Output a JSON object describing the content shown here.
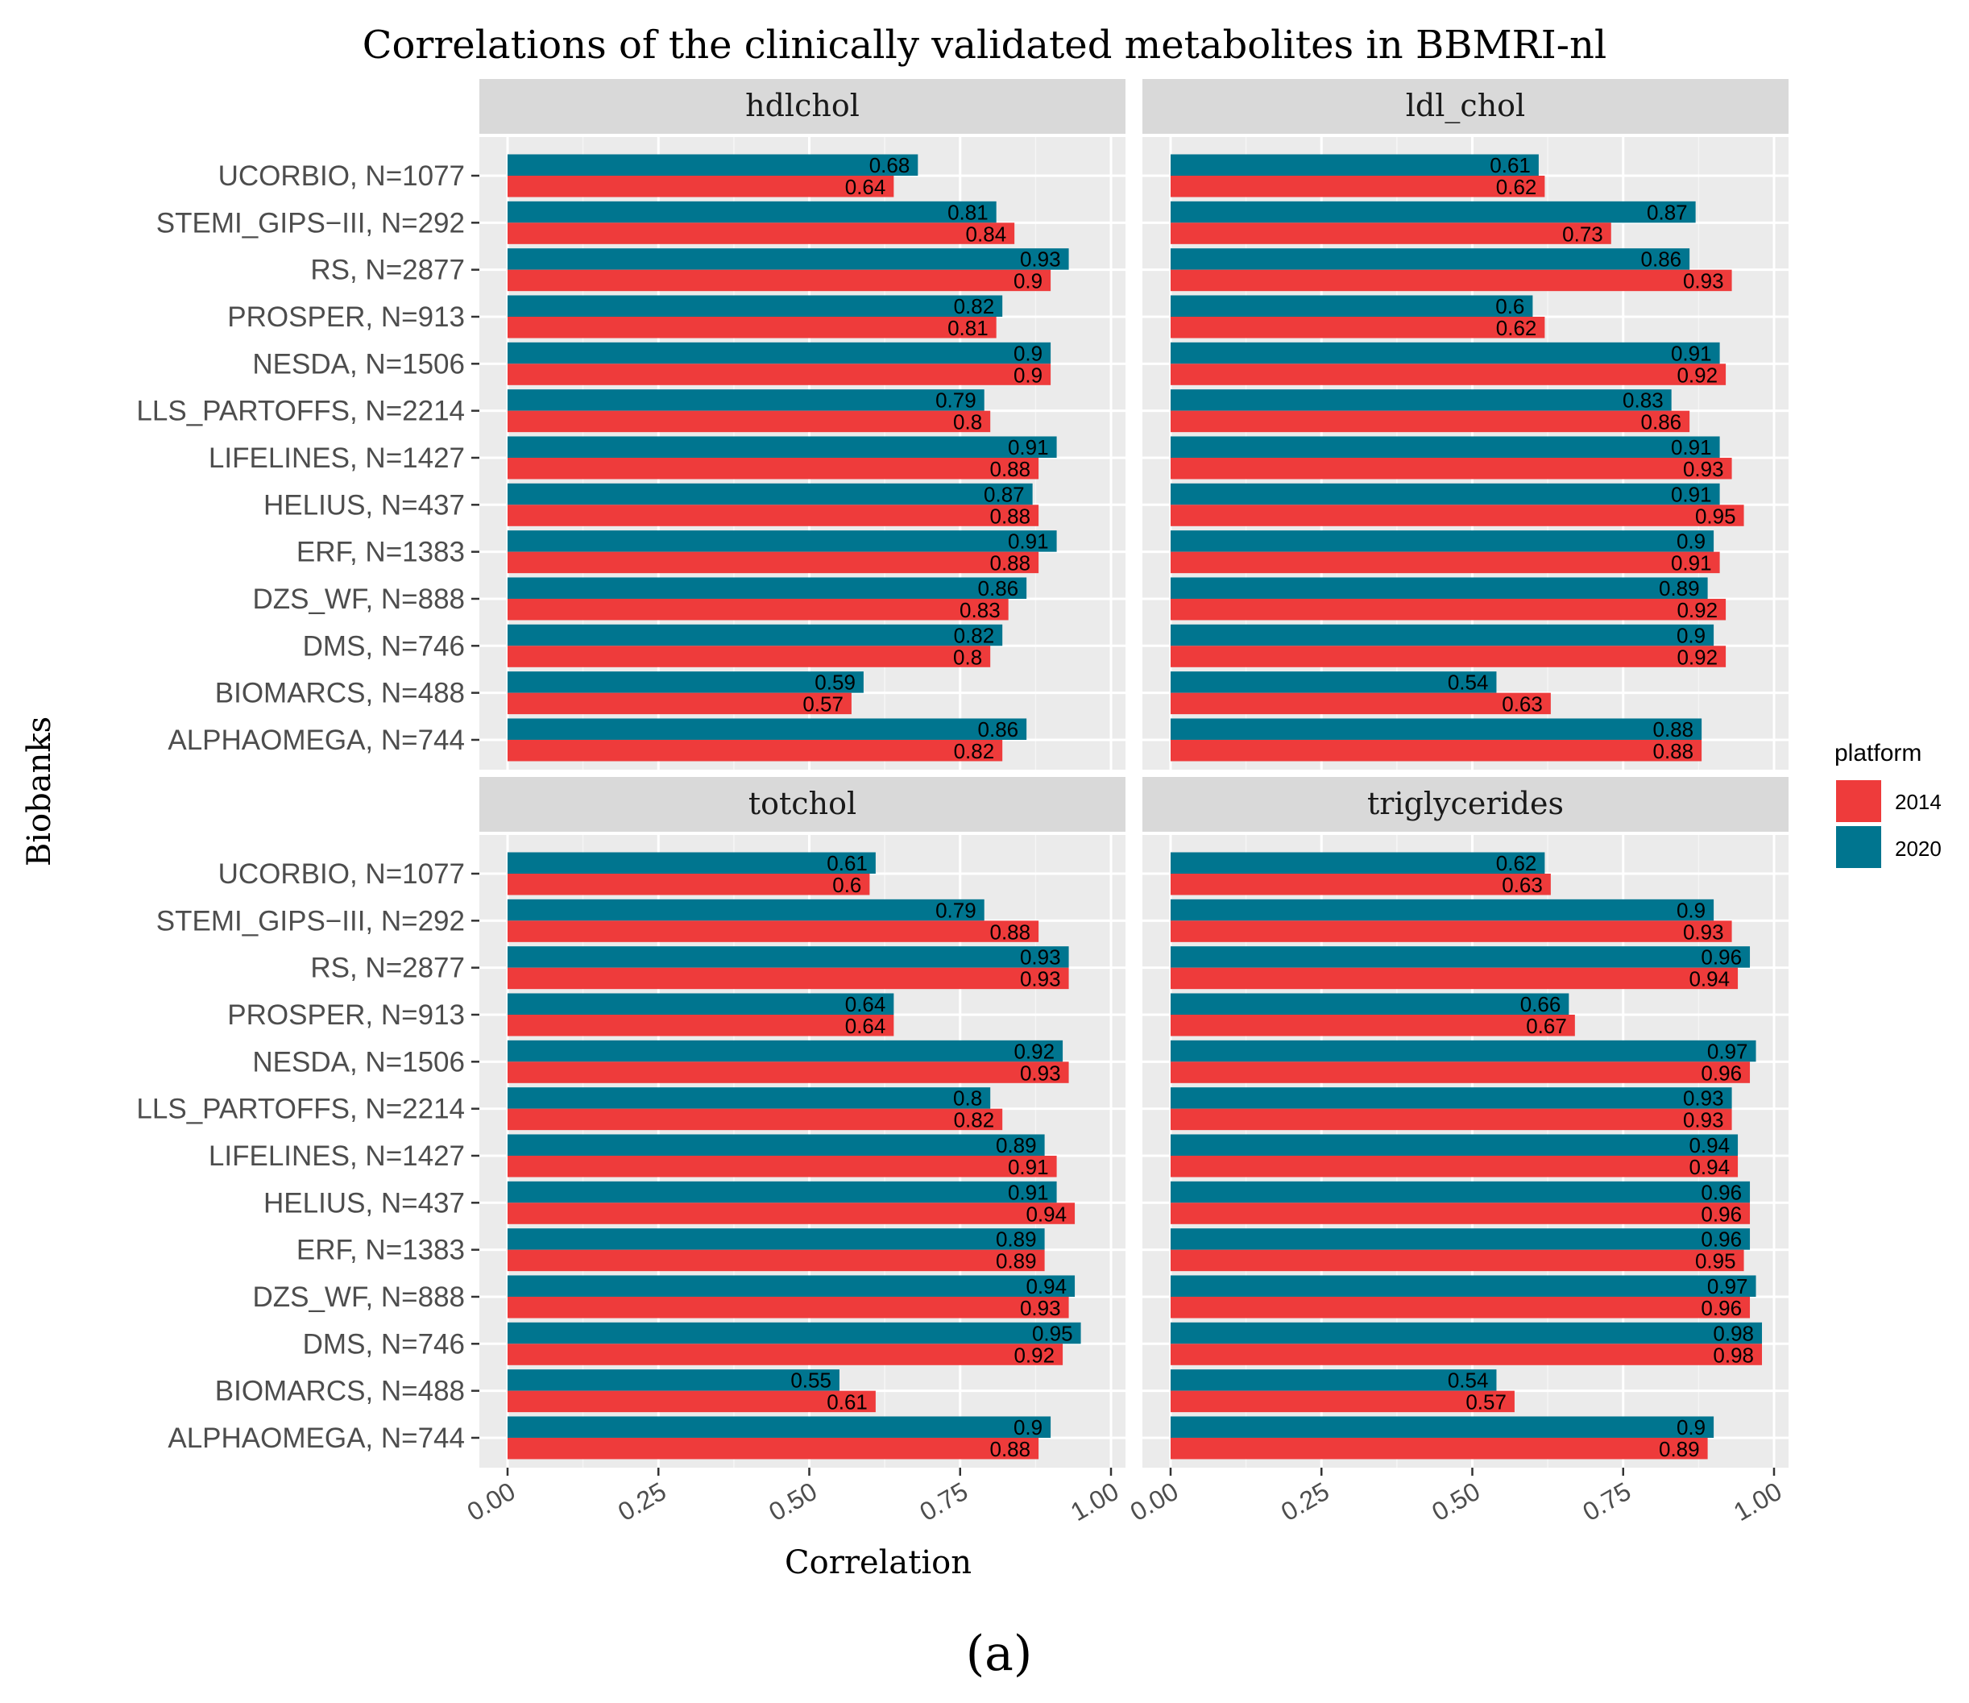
{
  "title": "Correlations of the clinically validated metabolites in BBMRI-nl",
  "caption": "(a)",
  "chart_data": {
    "type": "bar",
    "orientation": "horizontal",
    "title": "Correlations of the clinically validated metabolites in BBMRI-nl",
    "xlabel": "Correlation",
    "ylabel": "Biobanks",
    "xlim": [
      0,
      1
    ],
    "xticks": [
      "0.00",
      "0.25",
      "0.50",
      "0.75",
      "1.00"
    ],
    "xtick_values": [
      0,
      0.25,
      0.5,
      0.75,
      1.0
    ],
    "categories": [
      "UCORBIO, N=1077",
      "STEMI_GIPS−III, N=292",
      "RS, N=2877",
      "PROSPER, N=913",
      "NESDA, N=1506",
      "LLS_PARTOFFS, N=2214",
      "LIFELINES, N=1427",
      "HELIUS, N=437",
      "ERF, N=1383",
      "DZS_WF, N=888",
      "DMS, N=746",
      "BIOMARCS, N=488",
      "ALPHAOMEGA, N=744"
    ],
    "legend": {
      "title": "platform",
      "entries": [
        {
          "name": "2014",
          "color": "#EE3B3B"
        },
        {
          "name": "2020",
          "color": "#00758F"
        }
      ],
      "position": "right"
    },
    "panels": [
      {
        "name": "hdlchol",
        "series": [
          {
            "name": "2020",
            "values": [
              0.68,
              0.81,
              0.93,
              0.82,
              0.9,
              0.79,
              0.91,
              0.87,
              0.91,
              0.86,
              0.82,
              0.59,
              0.86
            ],
            "labels": [
              "0.68",
              "0.81",
              "0.93",
              "0.82",
              "0.9",
              "0.79",
              "0.91",
              "0.87",
              "0.91",
              "0.86",
              "0.82",
              "0.59",
              "0.86"
            ]
          },
          {
            "name": "2014",
            "values": [
              0.64,
              0.84,
              0.9,
              0.81,
              0.9,
              0.8,
              0.88,
              0.88,
              0.88,
              0.83,
              0.8,
              0.57,
              0.82
            ],
            "labels": [
              "0.64",
              "0.84",
              "0.9",
              "0.81",
              "0.9",
              "0.8",
              "0.88",
              "0.88",
              "0.88",
              "0.83",
              "0.8",
              "0.57",
              "0.82"
            ]
          }
        ]
      },
      {
        "name": "ldl_chol",
        "series": [
          {
            "name": "2020",
            "values": [
              0.61,
              0.87,
              0.86,
              0.6,
              0.91,
              0.83,
              0.91,
              0.91,
              0.9,
              0.89,
              0.9,
              0.54,
              0.88
            ],
            "labels": [
              "0.61",
              "0.87",
              "0.86",
              "0.6",
              "0.91",
              "0.83",
              "0.91",
              "0.91",
              "0.9",
              "0.89",
              "0.9",
              "0.54",
              "0.88"
            ]
          },
          {
            "name": "2014",
            "values": [
              0.62,
              0.73,
              0.93,
              0.62,
              0.92,
              0.86,
              0.93,
              0.95,
              0.91,
              0.92,
              0.92,
              0.63,
              0.88
            ],
            "labels": [
              "0.62",
              "0.73",
              "0.93",
              "0.62",
              "0.92",
              "0.86",
              "0.93",
              "0.95",
              "0.91",
              "0.92",
              "0.92",
              "0.63",
              "0.88"
            ]
          }
        ]
      },
      {
        "name": "totchol",
        "series": [
          {
            "name": "2020",
            "values": [
              0.61,
              0.79,
              0.93,
              0.64,
              0.92,
              0.8,
              0.89,
              0.91,
              0.89,
              0.94,
              0.95,
              0.55,
              0.9
            ],
            "labels": [
              "0.61",
              "0.79",
              "0.93",
              "0.64",
              "0.92",
              "0.8",
              "0.89",
              "0.91",
              "0.89",
              "0.94",
              "0.95",
              "0.55",
              "0.9"
            ]
          },
          {
            "name": "2014",
            "values": [
              0.6,
              0.88,
              0.93,
              0.64,
              0.93,
              0.82,
              0.91,
              0.94,
              0.89,
              0.93,
              0.92,
              0.61,
              0.88
            ],
            "labels": [
              "0.6",
              "0.88",
              "0.93",
              "0.64",
              "0.93",
              "0.82",
              "0.91",
              "0.94",
              "0.89",
              "0.93",
              "0.92",
              "0.61",
              "0.88"
            ]
          }
        ]
      },
      {
        "name": "triglycerides",
        "series": [
          {
            "name": "2020",
            "values": [
              0.62,
              0.9,
              0.96,
              0.66,
              0.97,
              0.93,
              0.94,
              0.96,
              0.96,
              0.97,
              0.98,
              0.54,
              0.9
            ],
            "labels": [
              "0.62",
              "0.9",
              "0.96",
              "0.66",
              "0.97",
              "0.93",
              "0.94",
              "0.96",
              "0.96",
              "0.97",
              "0.98",
              "0.54",
              "0.9"
            ]
          },
          {
            "name": "2014",
            "values": [
              0.63,
              0.93,
              0.94,
              0.67,
              0.96,
              0.93,
              0.94,
              0.96,
              0.95,
              0.96,
              0.98,
              0.57,
              0.89
            ],
            "labels": [
              "0.63",
              "0.93",
              "0.94",
              "0.67",
              "0.96",
              "0.93",
              "0.94",
              "0.96",
              "0.95",
              "0.96",
              "0.98",
              "0.57",
              "0.89"
            ]
          }
        ]
      }
    ]
  }
}
